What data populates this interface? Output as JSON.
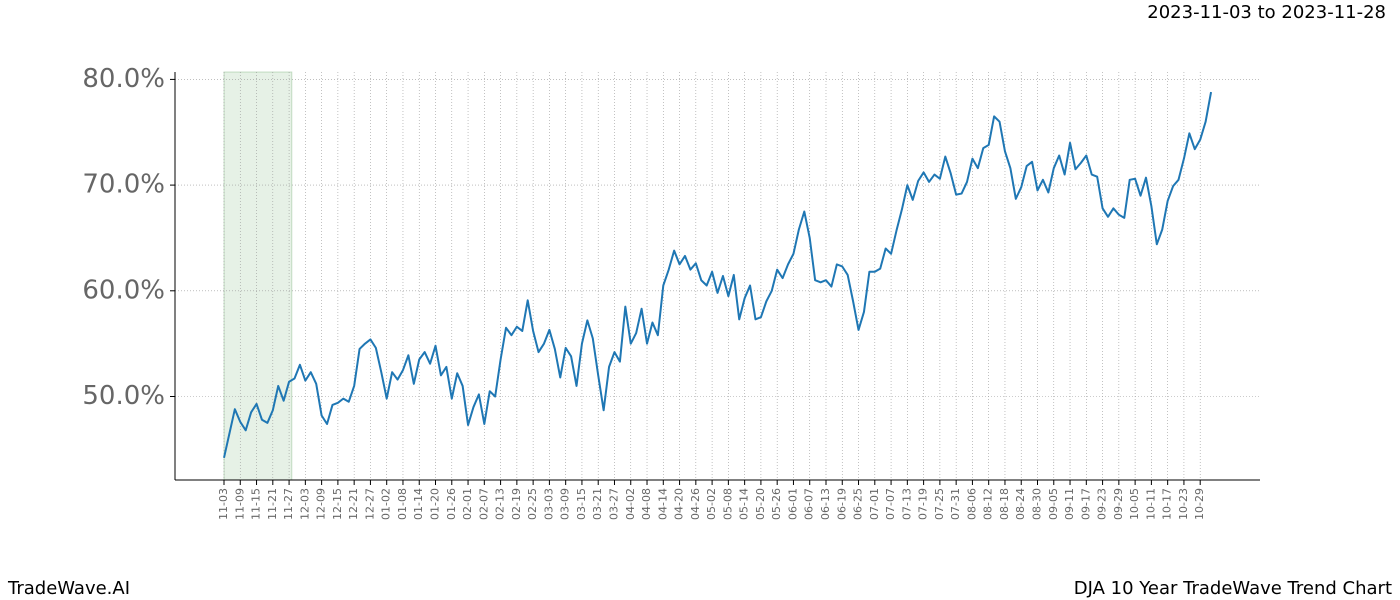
{
  "header": {
    "date_range": "2023-11-03 to 2023-11-28"
  },
  "footer": {
    "left": "TradeWave.AI",
    "right": "DJA 10 Year TradeWave Trend Chart"
  },
  "chart_data": {
    "type": "line",
    "categories": [
      "11-03",
      null,
      null,
      "11-09",
      null,
      null,
      "11-15",
      null,
      null,
      "11-21",
      null,
      null,
      "11-27",
      null,
      null,
      "12-03",
      null,
      null,
      "12-09",
      null,
      null,
      "12-15",
      null,
      null,
      "12-21",
      null,
      null,
      "12-27",
      null,
      null,
      "01-02",
      null,
      null,
      "01-08",
      null,
      null,
      "01-14",
      null,
      null,
      "01-20",
      null,
      null,
      "01-26",
      null,
      null,
      "02-01",
      null,
      null,
      "02-07",
      null,
      null,
      "02-13",
      null,
      null,
      "02-19",
      null,
      null,
      "02-25",
      null,
      null,
      "03-03",
      null,
      null,
      "03-09",
      null,
      null,
      "03-15",
      null,
      null,
      "03-21",
      null,
      null,
      "03-27",
      null,
      null,
      "04-02",
      null,
      null,
      "04-08",
      null,
      null,
      "04-14",
      null,
      null,
      "04-20",
      null,
      null,
      "04-26",
      null,
      null,
      "05-02",
      null,
      null,
      "05-08",
      null,
      null,
      "05-14",
      null,
      null,
      "05-20",
      null,
      null,
      "05-26",
      null,
      null,
      "06-01",
      null,
      null,
      "06-07",
      null,
      null,
      "06-13",
      null,
      null,
      "06-19",
      null,
      null,
      "06-25",
      null,
      null,
      "07-01",
      null,
      null,
      "07-07",
      null,
      null,
      "07-13",
      null,
      null,
      "07-19",
      null,
      null,
      "07-25",
      null,
      null,
      "07-31",
      null,
      null,
      "08-06",
      null,
      null,
      "08-12",
      null,
      null,
      "08-18",
      null,
      null,
      "08-24",
      null,
      null,
      "08-30",
      null,
      null,
      "09-05",
      null,
      null,
      "09-11",
      null,
      null,
      "09-17",
      null,
      null,
      "09-23",
      null,
      null,
      "09-29",
      null,
      null,
      "10-05",
      null,
      null,
      "10-11",
      null,
      null,
      "10-17",
      null,
      null,
      "10-23",
      null,
      null,
      "10-29",
      null,
      null
    ],
    "series": [
      {
        "color": "#1f77b4",
        "values": [
          44.2,
          46.5,
          48.8,
          47.6,
          46.8,
          48.5,
          49.3,
          47.8,
          47.5,
          48.7,
          51.0,
          49.6,
          51.4,
          51.7,
          53.0,
          51.5,
          52.3,
          51.2,
          48.2,
          47.4,
          49.2,
          49.4,
          49.8,
          49.5,
          51.0,
          54.5,
          55.0,
          55.4,
          54.6,
          52.3,
          49.8,
          52.3,
          51.6,
          52.5,
          53.9,
          51.2,
          53.5,
          54.2,
          53.1,
          54.8,
          52.0,
          52.8,
          49.8,
          52.2,
          51.0,
          47.3,
          49.0,
          50.2,
          47.4,
          50.5,
          50.0,
          53.5,
          56.5,
          55.8,
          56.6,
          56.2,
          59.1,
          56.2,
          54.2,
          55.0,
          56.3,
          54.5,
          51.8,
          54.6,
          53.8,
          51.0,
          55.0,
          57.2,
          55.5,
          52.0,
          48.7,
          52.8,
          54.2,
          53.3,
          58.5,
          55.0,
          56.0,
          58.3,
          55.0,
          57.0,
          55.8,
          60.5,
          62.0,
          63.8,
          62.5,
          63.3,
          62.0,
          62.6,
          61.0,
          60.5,
          61.8,
          59.8,
          61.4,
          59.5,
          61.5,
          57.3,
          59.3,
          60.5,
          57.3,
          57.5,
          59.0,
          60.0,
          62.0,
          61.2,
          62.5,
          63.5,
          65.8,
          67.5,
          65.0,
          61.0,
          60.8,
          61.0,
          60.4,
          62.5,
          62.3,
          61.5,
          59.0,
          56.3,
          58.0,
          61.8,
          61.8,
          62.1,
          64.0,
          63.5,
          65.7,
          67.7,
          70.0,
          68.6,
          70.4,
          71.2,
          70.3,
          71.0,
          70.6,
          72.7,
          71.1,
          69.1,
          69.2,
          70.3,
          72.5,
          71.6,
          73.5,
          73.8,
          76.5,
          76.0,
          73.2,
          71.6,
          68.7,
          69.8,
          71.8,
          72.2,
          69.5,
          70.5,
          69.3,
          71.6,
          72.8,
          71.0,
          74.0,
          71.5,
          72.1,
          72.8,
          71.0,
          70.8,
          67.8,
          67.0,
          67.8,
          67.2,
          66.9,
          70.5,
          70.6,
          69.0,
          70.7,
          68.0,
          64.4,
          65.8,
          68.5,
          69.9,
          70.5,
          72.5,
          74.9,
          73.4,
          74.3,
          76.0,
          78.8
        ]
      }
    ],
    "highlight_range": [
      0,
      12.5
    ],
    "ylim": [
      42.1,
      80.7
    ],
    "yticks": [
      {
        "value": 50,
        "label": "50.0%"
      },
      {
        "value": 60,
        "label": "60.0%"
      },
      {
        "value": 70,
        "label": "70.0%"
      },
      {
        "value": 80,
        "label": "80.0%"
      }
    ],
    "grid": true
  }
}
